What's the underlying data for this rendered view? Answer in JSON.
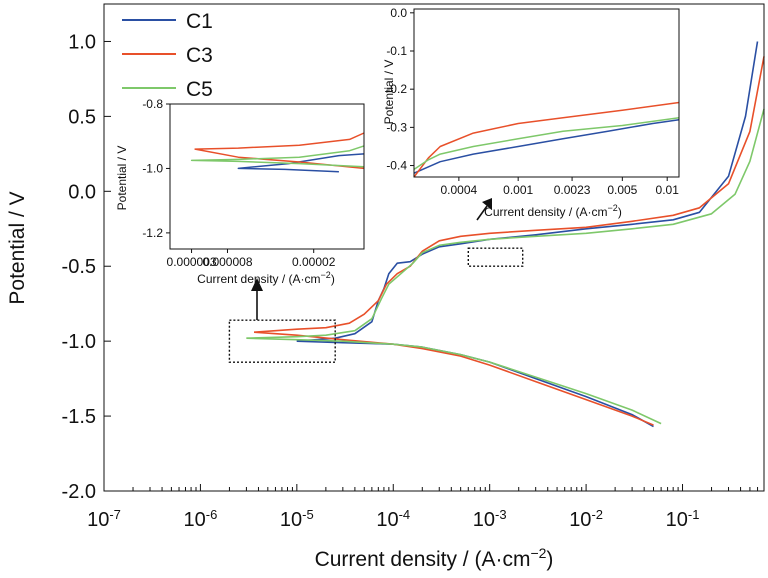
{
  "colors": {
    "C1": "#2a4fa3",
    "C3": "#e8502a",
    "C5": "#7ec86a",
    "axis": "#111111"
  },
  "chart_data": [
    {
      "type": "line",
      "xscale": "log",
      "xlim": [
        1e-07,
        0.7
      ],
      "ylim": [
        -2.0,
        1.25
      ],
      "xlabel": "Current density / (A·cm",
      "xlabel_sup": "−2",
      "xlabel_end": ")",
      "ylabel": "Potential / V",
      "xticks": [
        {
          "value": 1e-07,
          "base": "10",
          "exp": "-7"
        },
        {
          "value": 1e-06,
          "base": "10",
          "exp": "-6"
        },
        {
          "value": 1e-05,
          "base": "10",
          "exp": "-5"
        },
        {
          "value": 0.0001,
          "base": "10",
          "exp": "-4"
        },
        {
          "value": 0.001,
          "base": "10",
          "exp": "-3"
        },
        {
          "value": 0.01,
          "base": "10",
          "exp": "-2"
        },
        {
          "value": 0.1,
          "base": "10",
          "exp": "-1"
        }
      ],
      "yticks": [
        {
          "value": 1.0,
          "label": "1.0"
        },
        {
          "value": 0.5,
          "label": "0.5"
        },
        {
          "value": 0.0,
          "label": "0.0"
        },
        {
          "value": -0.5,
          "label": "-0.5"
        },
        {
          "value": -1.0,
          "label": "-1.0"
        },
        {
          "value": -1.5,
          "label": "-1.5"
        },
        {
          "value": -2.0,
          "label": "-2.0"
        }
      ],
      "legend": {
        "placement": "top-left",
        "entries": [
          "C1",
          "C3",
          "C5"
        ]
      },
      "series": [
        {
          "name": "C1",
          "cathodic": [
            [
              1e-05,
              -1.0
            ],
            [
              3e-05,
              -1.01
            ],
            [
              0.0001,
              -1.02
            ],
            [
              0.0002,
              -1.04
            ],
            [
              0.0005,
              -1.09
            ],
            [
              0.001,
              -1.14
            ],
            [
              0.003,
              -1.25
            ],
            [
              0.01,
              -1.37
            ],
            [
              0.03,
              -1.49
            ],
            [
              0.05,
              -1.57
            ]
          ],
          "anodic": [
            [
              1e-05,
              -1.0
            ],
            [
              2.5e-05,
              -0.98
            ],
            [
              4e-05,
              -0.95
            ],
            [
              6e-05,
              -0.87
            ],
            [
              7e-05,
              -0.73
            ],
            [
              8e-05,
              -0.65
            ],
            [
              9e-05,
              -0.55
            ],
            [
              0.00011,
              -0.48
            ],
            [
              0.00015,
              -0.47
            ],
            [
              0.0002,
              -0.42
            ],
            [
              0.0003,
              -0.37
            ],
            [
              0.0005,
              -0.35
            ],
            [
              0.001,
              -0.32
            ],
            [
              0.003,
              -0.29
            ],
            [
              0.01,
              -0.25
            ],
            [
              0.03,
              -0.22
            ],
            [
              0.08,
              -0.19
            ],
            [
              0.15,
              -0.14
            ],
            [
              0.3,
              0.1
            ],
            [
              0.45,
              0.5
            ],
            [
              0.6,
              1.0
            ]
          ]
        },
        {
          "name": "C3",
          "cathodic": [
            [
              3.6e-06,
              -0.94
            ],
            [
              1e-05,
              -0.96
            ],
            [
              3e-05,
              -0.99
            ],
            [
              0.0001,
              -1.02
            ],
            [
              0.0002,
              -1.05
            ],
            [
              0.0005,
              -1.1
            ],
            [
              0.001,
              -1.16
            ],
            [
              0.003,
              -1.27
            ],
            [
              0.01,
              -1.39
            ],
            [
              0.03,
              -1.5
            ],
            [
              0.05,
              -1.56
            ]
          ],
          "anodic": [
            [
              3.6e-06,
              -0.94
            ],
            [
              1e-05,
              -0.92
            ],
            [
              2e-05,
              -0.91
            ],
            [
              3.5e-05,
              -0.88
            ],
            [
              5e-05,
              -0.82
            ],
            [
              7e-05,
              -0.73
            ],
            [
              8.5e-05,
              -0.62
            ],
            [
              0.00011,
              -0.55
            ],
            [
              0.00015,
              -0.5
            ],
            [
              0.0002,
              -0.4
            ],
            [
              0.0003,
              -0.33
            ],
            [
              0.0005,
              -0.3
            ],
            [
              0.001,
              -0.28
            ],
            [
              0.003,
              -0.26
            ],
            [
              0.01,
              -0.24
            ],
            [
              0.03,
              -0.2
            ],
            [
              0.08,
              -0.16
            ],
            [
              0.15,
              -0.11
            ],
            [
              0.3,
              0.05
            ],
            [
              0.5,
              0.4
            ],
            [
              0.7,
              0.9
            ]
          ]
        },
        {
          "name": "C5",
          "cathodic": [
            [
              3e-06,
              -0.98
            ],
            [
              1e-05,
              -0.99
            ],
            [
              3e-05,
              -1.0
            ],
            [
              0.0001,
              -1.02
            ],
            [
              0.0002,
              -1.04
            ],
            [
              0.0005,
              -1.09
            ],
            [
              0.001,
              -1.14
            ],
            [
              0.003,
              -1.24
            ],
            [
              0.01,
              -1.35
            ],
            [
              0.03,
              -1.46
            ],
            [
              0.06,
              -1.55
            ]
          ],
          "anodic": [
            [
              3e-06,
              -0.98
            ],
            [
              1e-05,
              -0.97
            ],
            [
              2e-05,
              -0.96
            ],
            [
              4e-05,
              -0.93
            ],
            [
              6e-05,
              -0.85
            ],
            [
              7.5e-05,
              -0.72
            ],
            [
              9e-05,
              -0.62
            ],
            [
              0.00012,
              -0.55
            ],
            [
              0.00016,
              -0.48
            ],
            [
              0.0002,
              -0.41
            ],
            [
              0.0003,
              -0.36
            ],
            [
              0.0005,
              -0.34
            ],
            [
              0.001,
              -0.32
            ],
            [
              0.003,
              -0.3
            ],
            [
              0.01,
              -0.28
            ],
            [
              0.03,
              -0.25
            ],
            [
              0.08,
              -0.22
            ],
            [
              0.2,
              -0.15
            ],
            [
              0.35,
              -0.02
            ],
            [
              0.5,
              0.2
            ],
            [
              0.7,
              0.55
            ]
          ]
        }
      ],
      "annotation_boxes": [
        {
          "xlim": [
            2e-06,
            2.5e-05
          ],
          "ylim": [
            -1.14,
            -0.86
          ]
        },
        {
          "xlim": [
            0.0006,
            0.0022
          ],
          "ylim": [
            -0.5,
            -0.38
          ]
        }
      ]
    },
    {
      "type": "line",
      "xscale": "linear",
      "xlim": [
        0.0,
        2.7e-05
      ],
      "ylim": [
        -1.25,
        -0.8
      ],
      "xlabel": "Current density / (A·cm",
      "xlabel_sup": "−2",
      "xlabel_end": ")",
      "ylabel": "Potential / V",
      "xticks": [
        {
          "value": 3e-06,
          "label": "0.000003"
        },
        {
          "value": 8e-06,
          "label": "0.000008"
        },
        {
          "value": 2e-05,
          "label": "0.00002"
        }
      ],
      "yticks": [
        {
          "value": -0.8,
          "label": "-0.8"
        },
        {
          "value": -1.0,
          "label": "-1.0"
        },
        {
          "value": -1.2,
          "label": "-1.2"
        }
      ],
      "series": [
        {
          "name": "C1",
          "points": [
            [
              2.35e-05,
              -1.01
            ],
            [
              1.6e-05,
              -1.003
            ],
            [
              9.5e-06,
              -1.0
            ],
            [
              1.65e-05,
              -0.985
            ],
            [
              2.35e-05,
              -0.96
            ],
            [
              2.7e-05,
              -0.955
            ]
          ]
        },
        {
          "name": "C3",
          "points": [
            [
              2.7e-05,
              -1.0
            ],
            [
              1.8e-05,
              -0.98
            ],
            [
              9.5e-06,
              -0.965
            ],
            [
              3.5e-06,
              -0.94
            ],
            [
              9.5e-06,
              -0.937
            ],
            [
              1.8e-05,
              -0.928
            ],
            [
              2.5e-05,
              -0.91
            ],
            [
              2.7e-05,
              -0.89
            ]
          ]
        },
        {
          "name": "C5",
          "points": [
            [
              2.7e-05,
              -0.995
            ],
            [
              1.8e-05,
              -0.985
            ],
            [
              9.5e-06,
              -0.978
            ],
            [
              3e-06,
              -0.975
            ],
            [
              9.5e-06,
              -0.972
            ],
            [
              1.8e-05,
              -0.965
            ],
            [
              2.5e-05,
              -0.945
            ],
            [
              2.7e-05,
              -0.93
            ]
          ]
        }
      ]
    },
    {
      "type": "line",
      "xscale": "log",
      "xlim": [
        0.0002,
        0.012
      ],
      "ylim": [
        -0.43,
        0.01
      ],
      "xlabel": "Current density / (A·cm",
      "xlabel_sup": "−2",
      "xlabel_end": ")",
      "ylabel": "Potential / V",
      "xticks": [
        {
          "value": 0.0004,
          "label": "0.0004"
        },
        {
          "value": 0.001,
          "label": "0.001"
        },
        {
          "value": 0.0023,
          "label": "0.0023"
        },
        {
          "value": 0.005,
          "label": "0.005"
        },
        {
          "value": 0.01,
          "label": "0.01"
        }
      ],
      "yticks": [
        {
          "value": 0.0,
          "label": "0.0"
        },
        {
          "value": -0.1,
          "label": "-0.1"
        },
        {
          "value": -0.2,
          "label": "-0.2"
        },
        {
          "value": -0.3,
          "label": "-0.3"
        },
        {
          "value": -0.4,
          "label": "-0.4"
        }
      ],
      "series": [
        {
          "name": "C1",
          "points": [
            [
              0.0002,
              -0.42
            ],
            [
              0.0003,
              -0.39
            ],
            [
              0.0005,
              -0.37
            ],
            [
              0.001,
              -0.35
            ],
            [
              0.002,
              -0.33
            ],
            [
              0.004,
              -0.31
            ],
            [
              0.008,
              -0.29
            ],
            [
              0.012,
              -0.28
            ]
          ]
        },
        {
          "name": "C3",
          "points": [
            [
              0.0002,
              -0.43
            ],
            [
              0.00025,
              -0.38
            ],
            [
              0.0003,
              -0.35
            ],
            [
              0.0005,
              -0.315
            ],
            [
              0.001,
              -0.29
            ],
            [
              0.002,
              -0.275
            ],
            [
              0.005,
              -0.255
            ],
            [
              0.012,
              -0.235
            ]
          ]
        },
        {
          "name": "C5",
          "points": [
            [
              0.0002,
              -0.41
            ],
            [
              0.00025,
              -0.385
            ],
            [
              0.0003,
              -0.37
            ],
            [
              0.0005,
              -0.35
            ],
            [
              0.001,
              -0.33
            ],
            [
              0.002,
              -0.31
            ],
            [
              0.005,
              -0.295
            ],
            [
              0.012,
              -0.275
            ]
          ]
        }
      ]
    }
  ]
}
